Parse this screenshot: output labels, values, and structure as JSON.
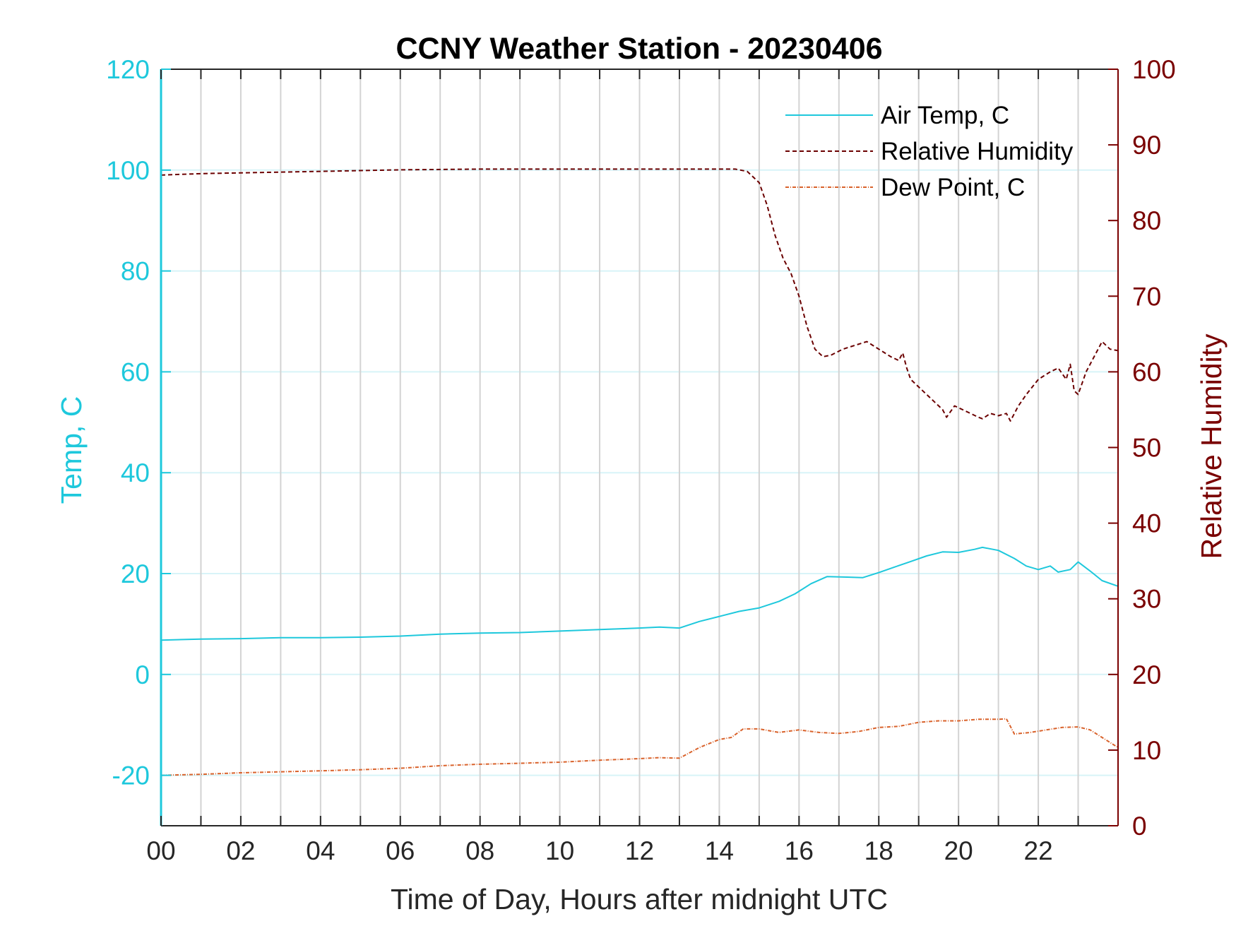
{
  "chart_data": {
    "type": "line",
    "title": "CCNY Weather Station - 20230406",
    "xlabel": "Time of Day, Hours after midnight UTC",
    "ylabel_left": "Temp, C",
    "ylabel_right": "Relative Humidity",
    "xlim": [
      0,
      24
    ],
    "ylim_left": [
      -30,
      120
    ],
    "ylim_right": [
      0,
      100
    ],
    "x_ticks": [
      0,
      2,
      4,
      6,
      8,
      10,
      12,
      14,
      16,
      18,
      20,
      22
    ],
    "x_tick_labels": [
      "00",
      "02",
      "04",
      "06",
      "08",
      "10",
      "12",
      "14",
      "16",
      "18",
      "20",
      "22"
    ],
    "y_left_ticks": [
      -20,
      0,
      20,
      40,
      60,
      80,
      100,
      120
    ],
    "y_left_tick_labels": [
      "-20",
      "0",
      "20",
      "40",
      "60",
      "80",
      "100",
      "120"
    ],
    "y_right_ticks": [
      0,
      10,
      20,
      30,
      40,
      50,
      60,
      70,
      80,
      90,
      100
    ],
    "y_right_tick_labels": [
      "0",
      "10",
      "20",
      "30",
      "40",
      "50",
      "60",
      "70",
      "80",
      "90",
      "100"
    ],
    "grid": true,
    "legend_position": "top-right",
    "colors": {
      "left_axis": "#1ec8dc",
      "right_axis": "#7a0000",
      "air_temp": "#1ec8dc",
      "humidity": "#6b0000",
      "dew_point": "#d9622b",
      "vgrid": "#d3d3d3",
      "hgrid": "#d8f4f8"
    },
    "series": [
      {
        "name": "Air Temp, C",
        "axis": "left",
        "style": "solid",
        "x": [
          0,
          1,
          2,
          3,
          4,
          5,
          6,
          7,
          8,
          9,
          10,
          11,
          12,
          12.5,
          13,
          13.5,
          14,
          14.5,
          15,
          15.5,
          15.9,
          16.3,
          16.7,
          17.2,
          17.6,
          18,
          18.4,
          18.8,
          19.2,
          19.6,
          20,
          20.4,
          20.6,
          21,
          21.4,
          21.7,
          22,
          22.3,
          22.5,
          22.8,
          23,
          23.3,
          23.6,
          24
        ],
        "y": [
          6.8,
          7,
          7.1,
          7.3,
          7.3,
          7.4,
          7.6,
          8,
          8.2,
          8.3,
          8.6,
          8.9,
          9.2,
          9.4,
          9.2,
          10.5,
          11.5,
          12.5,
          13.2,
          14.5,
          16,
          18,
          19.4,
          19.3,
          19.2,
          20.2,
          21.3,
          22.4,
          23.5,
          24.3,
          24.2,
          24.8,
          25.2,
          24.6,
          23,
          21.5,
          20.8,
          21.5,
          20.3,
          20.8,
          22.3,
          20.5,
          18.6,
          17.5
        ]
      },
      {
        "name": "Relative Humidity",
        "axis": "right",
        "style": "dashed",
        "x": [
          0,
          1,
          2,
          4,
          6,
          8,
          10,
          12,
          13,
          14,
          14.4,
          14.7,
          15,
          15.2,
          15.4,
          15.6,
          15.8,
          16,
          16.2,
          16.4,
          16.6,
          16.8,
          17.1,
          17.4,
          17.7,
          18,
          18.3,
          18.5,
          18.6,
          18.7,
          18.8,
          19.1,
          19.4,
          19.6,
          19.7,
          19.9,
          20.1,
          20.3,
          20.5,
          20.6,
          20.8,
          21,
          21.2,
          21.3,
          21.5,
          21.7,
          22,
          22.3,
          22.5,
          22.7,
          22.8,
          22.9,
          23,
          23.2,
          23.4,
          23.6,
          23.8,
          24
        ],
        "y": [
          86,
          86.2,
          86.3,
          86.5,
          86.7,
          86.8,
          86.8,
          86.8,
          86.8,
          86.8,
          86.8,
          86.5,
          85,
          82,
          78,
          75,
          73,
          70,
          66,
          63,
          62,
          62.2,
          63,
          63.5,
          64,
          63,
          62,
          61.5,
          62.5,
          60.5,
          59,
          57.5,
          56,
          55,
          54,
          55.5,
          55,
          54.5,
          54,
          53.8,
          54.5,
          54.2,
          54.5,
          53.5,
          55.5,
          57,
          59,
          60,
          60.5,
          59,
          61,
          57.5,
          57,
          60,
          62,
          64,
          63,
          62.8
        ]
      },
      {
        "name": "Dew Point, C",
        "axis": "left",
        "style": "dash-dot",
        "x": [
          0,
          1,
          2,
          3,
          4,
          5,
          6,
          7,
          8,
          9,
          10,
          11,
          12,
          12.5,
          13,
          13.5,
          14,
          14.3,
          14.6,
          15,
          15.5,
          16,
          16.5,
          17,
          17.5,
          18,
          18.5,
          19,
          19.5,
          20,
          20.5,
          21,
          21.2,
          21.4,
          21.8,
          22.2,
          22.6,
          23,
          23.3,
          23.6,
          24
        ],
        "y": [
          -20,
          -19.8,
          -19.5,
          -19.3,
          -19.1,
          -18.9,
          -18.6,
          -18.1,
          -17.8,
          -17.6,
          -17.4,
          -17,
          -16.7,
          -16.5,
          -16.6,
          -14.5,
          -12.9,
          -12.5,
          -10.8,
          -10.8,
          -11.5,
          -11,
          -11.5,
          -11.7,
          -11.3,
          -10.5,
          -10.3,
          -9.5,
          -9.2,
          -9.2,
          -8.9,
          -8.9,
          -8.8,
          -11.8,
          -11.5,
          -11,
          -10.5,
          -10.4,
          -11,
          -12.5,
          -14.5
        ]
      }
    ]
  }
}
